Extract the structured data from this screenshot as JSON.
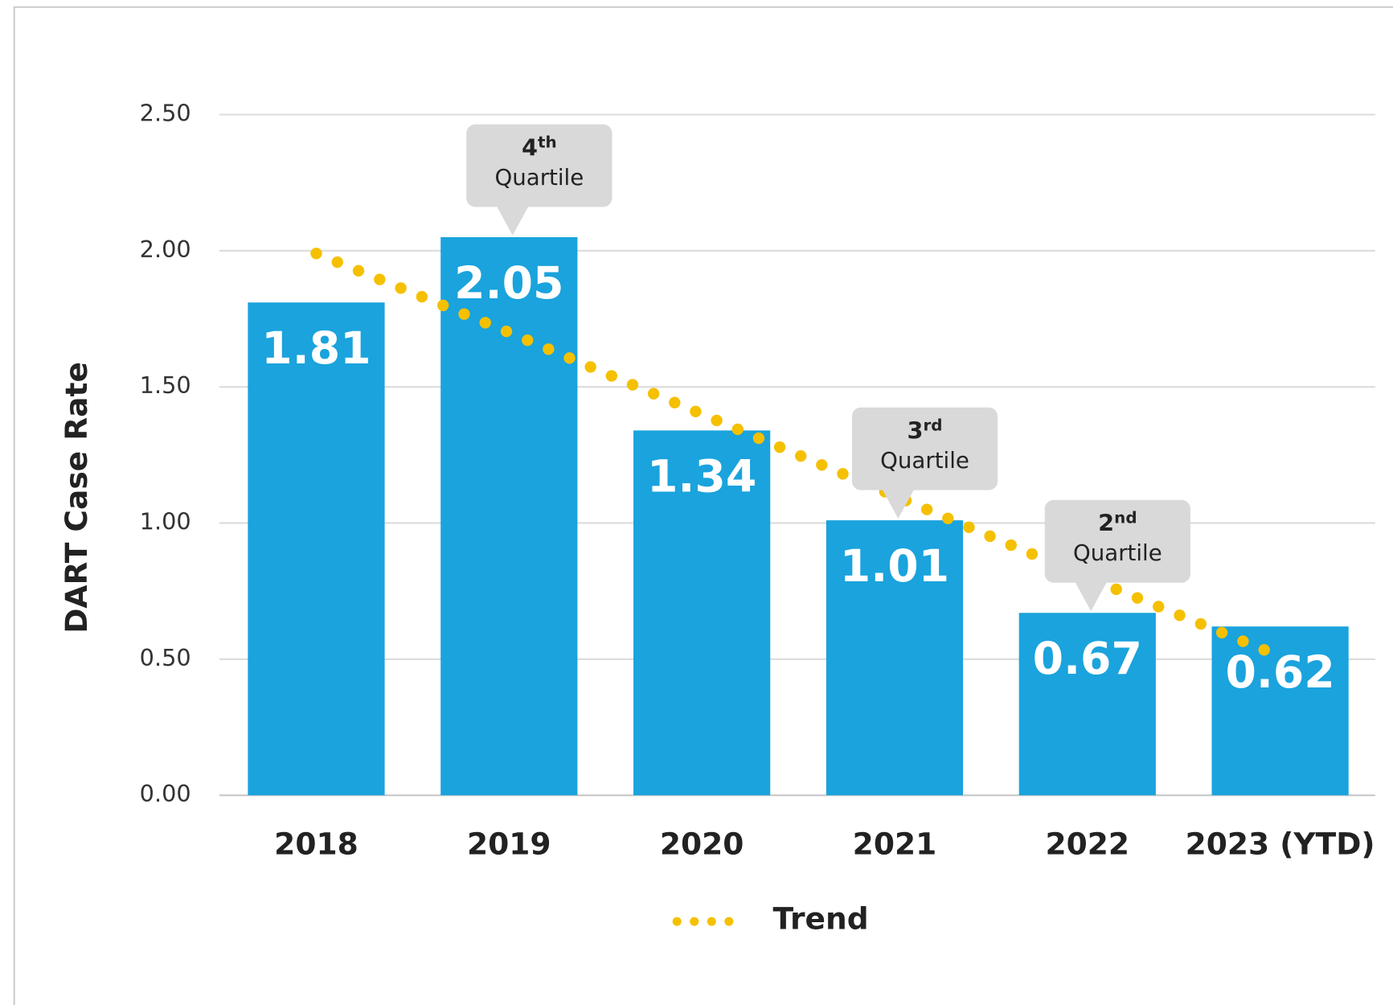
{
  "chart_data": {
    "type": "bar",
    "y_axis_label": "DART Case Rate",
    "categories": [
      "2018",
      "2019",
      "2020",
      "2021",
      "2022",
      "2023 (YTD)"
    ],
    "series": [
      {
        "name": "DART Case Rate",
        "color": "#1aa3dd",
        "values": [
          1.81,
          2.05,
          1.34,
          1.01,
          0.67,
          0.62
        ]
      },
      {
        "name": "Trend",
        "type": "line",
        "style": "dotted",
        "color": "#f5c000",
        "values": [
          1.99,
          1.7,
          1.4,
          1.1,
          0.8,
          0.51
        ]
      }
    ],
    "ylim": [
      0,
      2.5
    ],
    "yticks": [
      {
        "value": 0,
        "label": "0.00"
      },
      {
        "value": 0.5,
        "label": "0.50"
      },
      {
        "value": 1,
        "label": "1.00"
      },
      {
        "value": 1.5,
        "label": "1.50"
      },
      {
        "value": 2,
        "label": "2.00"
      },
      {
        "value": 2.5,
        "label": "2.50"
      }
    ],
    "grid": true,
    "legend": "bottom",
    "annotations": [
      {
        "category": "2019",
        "rank": "4",
        "suffix": "th",
        "text": "Quartile"
      },
      {
        "category": "2021",
        "rank": "3",
        "suffix": "rd",
        "text": "Quartile"
      },
      {
        "category": "2022",
        "rank": "2",
        "suffix": "nd",
        "text": "Quartile"
      }
    ]
  }
}
